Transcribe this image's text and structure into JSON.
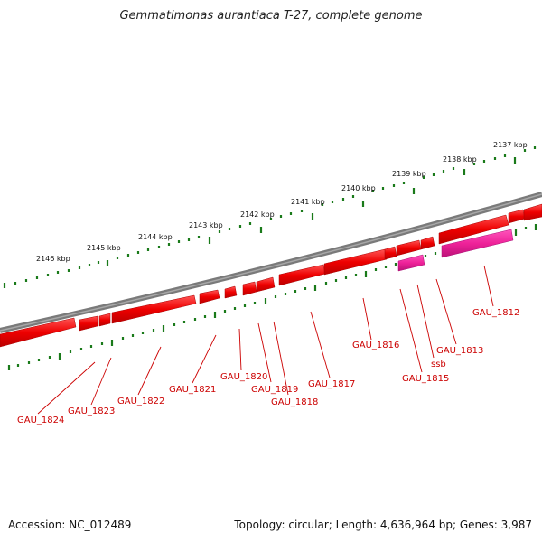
{
  "header": {
    "title": "Gemmatimonas aurantiaca T-27, complete genome"
  },
  "footer": {
    "accession": "Accession: NC_012489",
    "summary": "Topology: circular; Length: 4,636,964 bp; Genes: 3,987"
  },
  "colors": {
    "backbone": "#7a7a7a",
    "gene_forward": "#ee0000",
    "gene_reverse": "#ee2299",
    "tick_scale": "#1a7a1a",
    "label": "#cc0000",
    "scale_text": "#111111"
  },
  "scale_ticks": [
    "2146 kbp",
    "2145 kbp",
    "2144 kbp",
    "2143 kbp",
    "2142 kbp",
    "2141 kbp",
    "2140 kbp",
    "2139 kbp",
    "2138 kbp",
    "2137 kbp"
  ],
  "gene_labels": [
    "GAU_1824",
    "GAU_1823",
    "GAU_1822",
    "GAU_1821",
    "GAU_1820",
    "GAU_1819",
    "GAU_1818",
    "GAU_1817",
    "GAU_1816",
    "GAU_1815",
    "ssb",
    "GAU_1813",
    "GAU_1812"
  ]
}
